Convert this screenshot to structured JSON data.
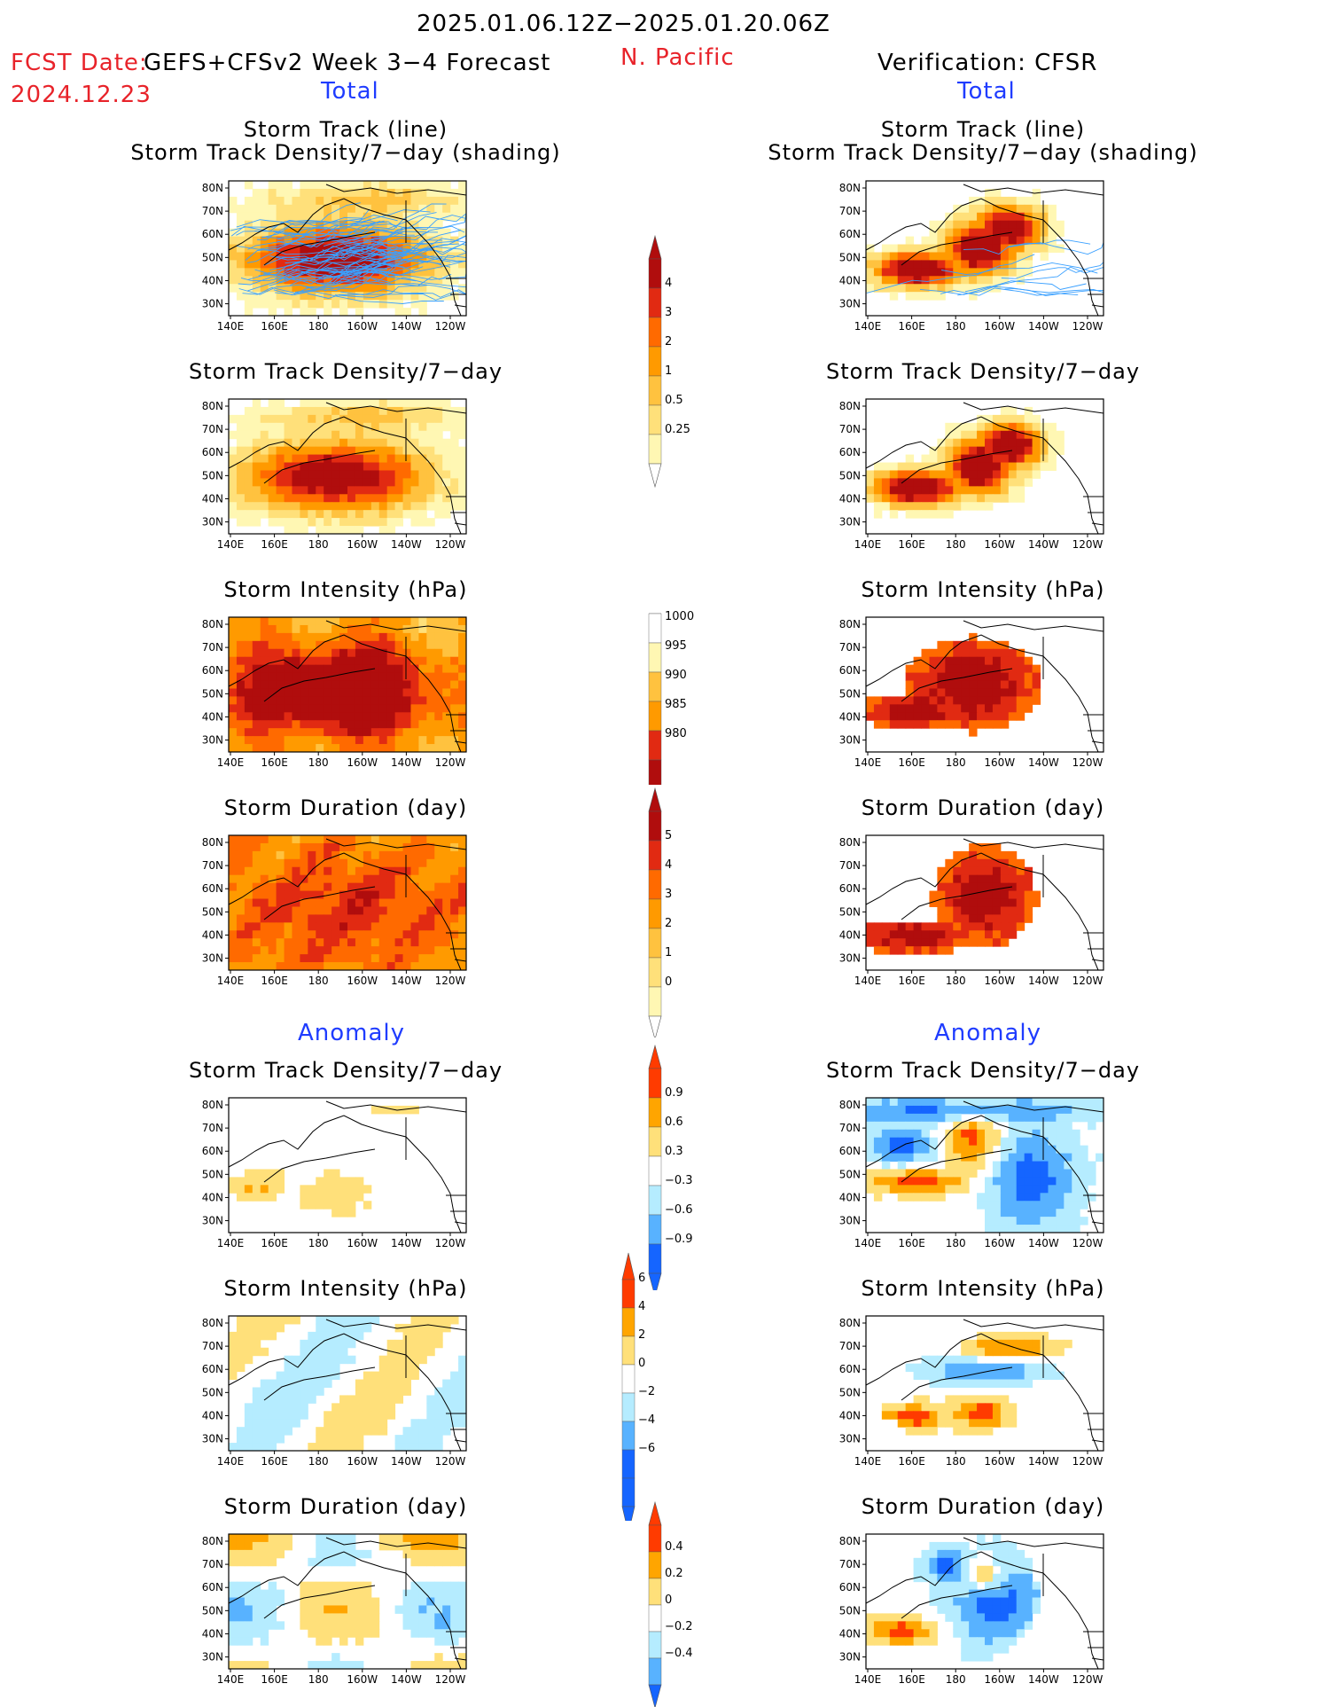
{
  "header": {
    "period": "2025.01.06.12Z−2025.01.20.06Z",
    "fcst_label": "FCST Date:",
    "fcst_date": "2024.12.23",
    "model": "GEFS+CFSv2 Week 3−4 Forecast",
    "region": "N. Pacific",
    "verification": "Verification: CFSR",
    "total_left": "Total",
    "total_right": "Total",
    "anomaly_left": "Anomaly",
    "anomaly_right": "Anomaly"
  },
  "panel_titles": {
    "track_line": "Storm Track (line)",
    "track_shading": "Storm Track Density/7−day (shading)",
    "density": "Storm Track Density/7−day",
    "intensity": "Storm Intensity (hPa)",
    "duration": "Storm Duration (day)"
  },
  "axes": {
    "lat_ticks": [
      "80N",
      "70N",
      "60N",
      "50N",
      "40N",
      "30N"
    ],
    "lon_ticks": [
      "140E",
      "160E",
      "180",
      "160W",
      "140W",
      "120W"
    ]
  },
  "colors": {
    "warm": [
      "#fff7b3",
      "#ffe07a",
      "#ffc23f",
      "#ff9a00",
      "#ff6a00",
      "#e12a12",
      "#b00d0d"
    ],
    "anom_warm": [
      "#ffe07a",
      "#ffa500",
      "#ff3b00"
    ],
    "anom_cool": [
      "#b5ecff",
      "#58b2ff",
      "#1565ff"
    ],
    "track_line": "#3aa0ff"
  },
  "colorbars": [
    {
      "id": "density_total",
      "labels": [
        "4",
        "3",
        "2",
        "1",
        "0.5",
        "0.25"
      ]
    },
    {
      "id": "intensity_total",
      "labels": [
        "1000",
        "995",
        "990",
        "985",
        "980"
      ]
    },
    {
      "id": "duration_total",
      "labels": [
        "5",
        "4",
        "3",
        "2",
        "1",
        "0"
      ]
    },
    {
      "id": "density_anom",
      "labels": [
        "0.9",
        "0.6",
        "0.3",
        "−0.3",
        "−0.6",
        "−0.9"
      ]
    },
    {
      "id": "intensity_anom",
      "labels": [
        "6",
        "4",
        "2",
        "0",
        "−2",
        "−4",
        "−6"
      ]
    },
    {
      "id": "duration_anom",
      "labels": [
        "0.4",
        "0.2",
        "0",
        "−0.2",
        "−0.4"
      ]
    }
  ],
  "chart_data": [
    {
      "type": "heatmap",
      "panel": "forecast-total-track-density-shading",
      "colorbar": "density_total",
      "lines": "storm tracks"
    },
    {
      "type": "heatmap",
      "panel": "forecast-total-track-density",
      "colorbar": "density_total"
    },
    {
      "type": "heatmap",
      "panel": "forecast-total-intensity",
      "colorbar": "intensity_total"
    },
    {
      "type": "heatmap",
      "panel": "forecast-total-duration",
      "colorbar": "duration_total"
    },
    {
      "type": "heatmap",
      "panel": "forecast-anomaly-track-density",
      "colorbar": "density_anom"
    },
    {
      "type": "heatmap",
      "panel": "forecast-anomaly-intensity",
      "colorbar": "intensity_anom"
    },
    {
      "type": "heatmap",
      "panel": "forecast-anomaly-duration",
      "colorbar": "duration_anom"
    },
    {
      "type": "heatmap",
      "panel": "verification-total-track-density-shading",
      "colorbar": "density_total",
      "lines": "storm tracks"
    },
    {
      "type": "heatmap",
      "panel": "verification-total-track-density",
      "colorbar": "density_total"
    },
    {
      "type": "heatmap",
      "panel": "verification-total-intensity",
      "colorbar": "intensity_total"
    },
    {
      "type": "heatmap",
      "panel": "verification-total-duration",
      "colorbar": "duration_total"
    },
    {
      "type": "heatmap",
      "panel": "verification-anomaly-track-density",
      "colorbar": "density_anom"
    },
    {
      "type": "heatmap",
      "panel": "verification-anomaly-intensity",
      "colorbar": "intensity_anom"
    },
    {
      "type": "heatmap",
      "panel": "verification-anomaly-duration",
      "colorbar": "duration_anom"
    }
  ]
}
